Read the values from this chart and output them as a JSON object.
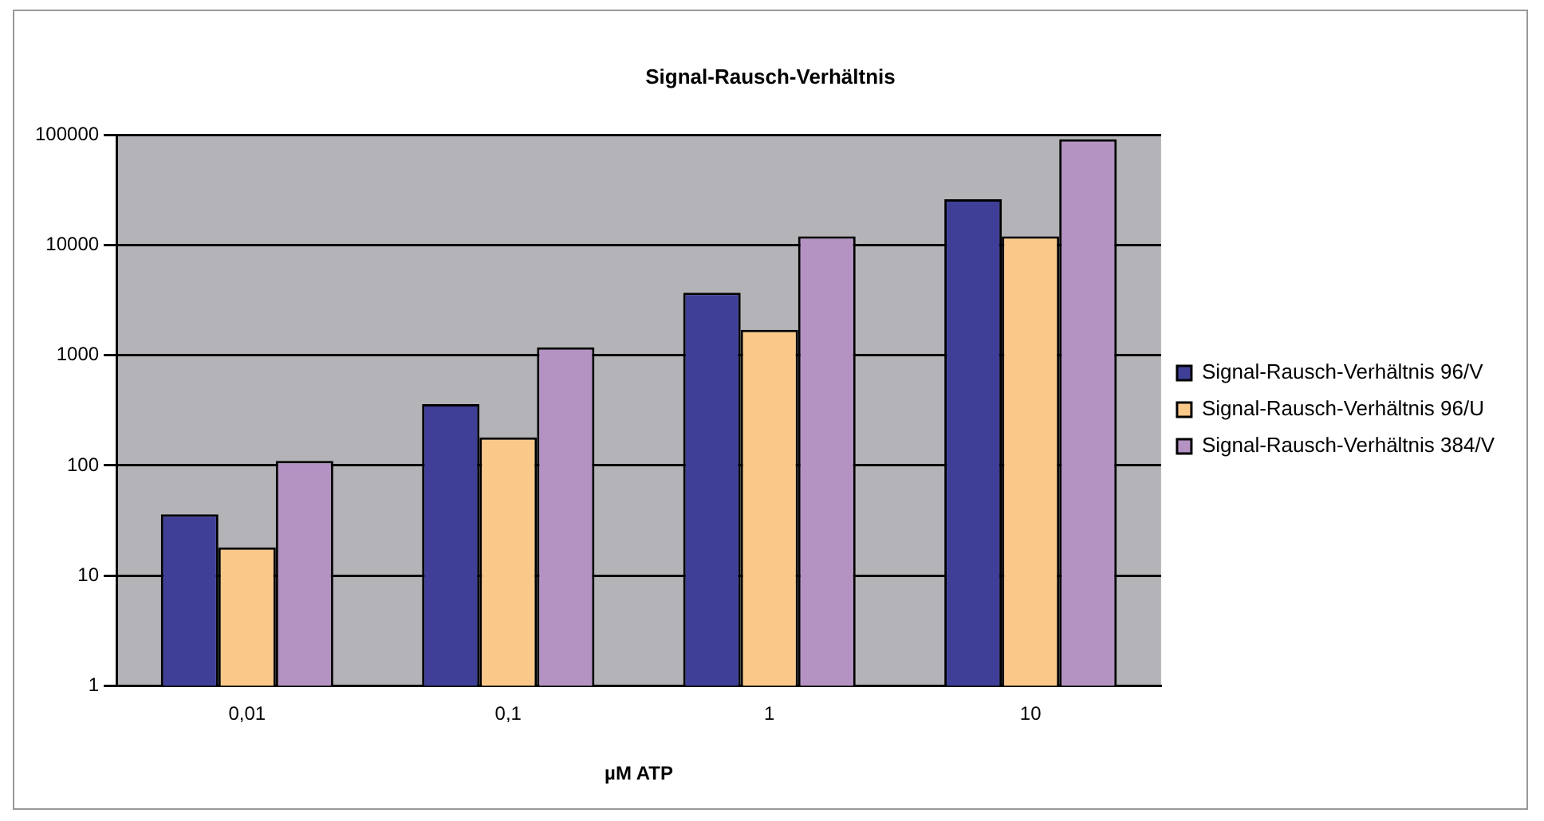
{
  "chart_data": {
    "type": "bar",
    "title": "Signal-Rausch-Verhältnis",
    "xlabel": "µM ATP",
    "categories": [
      "0,01",
      "0,1",
      "1",
      "10"
    ],
    "series": [
      {
        "name": "Signal-Rausch-Verhältnis 96/V",
        "color": "#3f3f98",
        "values": [
          36,
          360,
          3700,
          26000
        ]
      },
      {
        "name": "Signal-Rausch-Verhältnis 96/U",
        "color": "#fac98a",
        "values": [
          18,
          180,
          1700,
          12000
        ]
      },
      {
        "name": "Signal-Rausch-Verhältnis 384/V",
        "color": "#b493c3",
        "values": [
          110,
          1180,
          12000,
          91000
        ]
      }
    ],
    "log": "y",
    "ylim": [
      1,
      100000
    ],
    "yticks": [
      1,
      10,
      100,
      1000,
      10000,
      100000
    ],
    "grid": "y",
    "legend": "right"
  }
}
